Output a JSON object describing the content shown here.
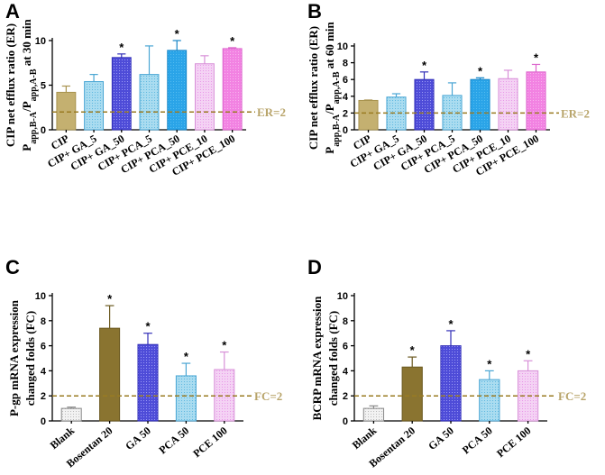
{
  "figure": {
    "panel_labels": [
      "A",
      "B",
      "C",
      "D"
    ]
  },
  "colors": {
    "tan": "#c4b070",
    "olive": "#8a7430",
    "blue_grid": "#5a58e0",
    "blue_light": "#8ccfe8",
    "blue_solid": "#2aa4e8",
    "pink_light": "#ecb6ec",
    "pink": "#f08ae0",
    "gray_light": "#d8d8d8",
    "ref_line": "#9a7b22",
    "ref_text": "#b8a46a"
  },
  "chart_data": [
    {
      "panel": "A",
      "type": "bar",
      "ylabel_lines": [
        "CIP net efflux ratio (ER)",
        "P_app,B-A/P_app,A-B at 30 min"
      ],
      "ylim": [
        0,
        10
      ],
      "yticks": [
        0,
        5,
        10
      ],
      "categories": [
        "CIP",
        "CIP+ GA_5",
        "CIP+ GA_50",
        "CIP+ PCA_5",
        "CIP+ PCA_50",
        "CIP+ PCE_10",
        "CIP+ PCE_100"
      ],
      "values": [
        4.2,
        5.4,
        8.1,
        6.2,
        8.9,
        7.4,
        9.1
      ],
      "errors": [
        0.7,
        0.8,
        0.4,
        3.2,
        1.1,
        0.9,
        0.1
      ],
      "significant": [
        false,
        false,
        true,
        false,
        true,
        false,
        true
      ],
      "significance_mark": "*",
      "fill_keys": [
        "tan",
        "blue_light",
        "blue_grid",
        "blue_light",
        "blue_solid",
        "pink_light",
        "pink"
      ],
      "reference_line": {
        "y": 2,
        "label": "ER=2"
      }
    },
    {
      "panel": "B",
      "type": "bar",
      "ylabel_lines": [
        "CIP net efflux ratio (ER)",
        "P_app,B-A/P_app,A-B at 60 min"
      ],
      "ylim": [
        0,
        10
      ],
      "yticks": [
        0,
        2,
        4,
        6,
        8,
        10
      ],
      "categories": [
        "CIP",
        "CIP+ GA_5",
        "CIP+ GA_50",
        "CIP+ PCA_5",
        "CIP+ PCA_50",
        "CIP+ PCE_10",
        "CIP+ PCE_100"
      ],
      "values": [
        3.5,
        3.9,
        6.0,
        4.1,
        6.0,
        6.1,
        6.9
      ],
      "errors": [
        0.05,
        0.4,
        0.9,
        1.5,
        0.2,
        1.0,
        0.9
      ],
      "significant": [
        false,
        false,
        true,
        false,
        true,
        false,
        true
      ],
      "significance_mark": "*",
      "fill_keys": [
        "tan",
        "blue_light",
        "blue_grid",
        "blue_light",
        "blue_solid",
        "pink_light",
        "pink"
      ],
      "reference_line": {
        "y": 2,
        "label": "ER=2"
      }
    },
    {
      "panel": "C",
      "type": "bar",
      "ylabel_lines": [
        "P-gp mRNA expression",
        "changed folds (FC)"
      ],
      "ylim": [
        0,
        10
      ],
      "yticks": [
        0,
        2,
        4,
        6,
        8,
        10
      ],
      "categories": [
        "Blank",
        "Bosentan 20",
        "GA 50",
        "PCA 50",
        "PCE 100"
      ],
      "values": [
        1.0,
        7.4,
        6.1,
        3.6,
        4.1
      ],
      "errors": [
        0.1,
        1.8,
        0.9,
        1.0,
        1.4
      ],
      "significant": [
        false,
        true,
        true,
        true,
        true
      ],
      "significance_mark": "*",
      "fill_keys": [
        "gray_light",
        "olive",
        "blue_grid",
        "blue_light",
        "pink_light"
      ],
      "reference_line": {
        "y": 2,
        "label": "FC=2"
      }
    },
    {
      "panel": "D",
      "type": "bar",
      "ylabel_lines": [
        "BCRP mRNA expression",
        "changed folds (FC)"
      ],
      "ylim": [
        0,
        10
      ],
      "yticks": [
        0,
        2,
        4,
        6,
        8,
        10
      ],
      "categories": [
        "Blank",
        "Bosentan 20",
        "GA 50",
        "PCA 50",
        "PCE 100"
      ],
      "values": [
        1.0,
        4.3,
        6.0,
        3.3,
        4.0
      ],
      "errors": [
        0.2,
        0.8,
        1.2,
        0.7,
        0.8
      ],
      "significant": [
        false,
        true,
        true,
        true,
        true
      ],
      "significance_mark": "*",
      "fill_keys": [
        "gray_light",
        "olive",
        "blue_grid",
        "blue_light",
        "pink_light"
      ],
      "reference_line": {
        "y": 2,
        "label": "FC=2"
      }
    }
  ]
}
